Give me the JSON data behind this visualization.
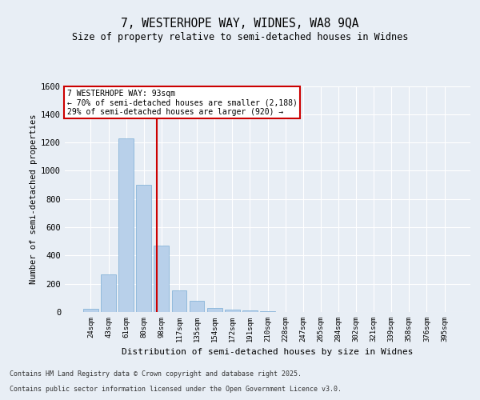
{
  "title": "7, WESTERHOPE WAY, WIDNES, WA8 9QA",
  "subtitle": "Size of property relative to semi-detached houses in Widnes",
  "xlabel": "Distribution of semi-detached houses by size in Widnes",
  "ylabel": "Number of semi-detached properties",
  "categories": [
    "24sqm",
    "43sqm",
    "61sqm",
    "80sqm",
    "98sqm",
    "117sqm",
    "135sqm",
    "154sqm",
    "172sqm",
    "191sqm",
    "210sqm",
    "228sqm",
    "247sqm",
    "265sqm",
    "284sqm",
    "302sqm",
    "321sqm",
    "339sqm",
    "358sqm",
    "376sqm",
    "395sqm"
  ],
  "values": [
    25,
    265,
    1230,
    900,
    470,
    155,
    80,
    28,
    18,
    10,
    5,
    2,
    1,
    0,
    0,
    0,
    0,
    0,
    0,
    0,
    0
  ],
  "bar_color": "#b8d0ea",
  "bar_edgecolor": "#7aadd4",
  "annotation_text_line1": "7 WESTERHOPE WAY: 93sqm",
  "annotation_text_line2": "← 70% of semi-detached houses are smaller (2,188)",
  "annotation_text_line3": "29% of semi-detached houses are larger (920) →",
  "annotation_box_color": "#ffffff",
  "annotation_box_edgecolor": "#cc0000",
  "red_line_color": "#cc0000",
  "background_color": "#e8eef5",
  "plot_background": "#e8eef5",
  "grid_color": "#ffffff",
  "ylim": [
    0,
    1600
  ],
  "yticks": [
    0,
    200,
    400,
    600,
    800,
    1000,
    1200,
    1400,
    1600
  ],
  "footer_line1": "Contains HM Land Registry data © Crown copyright and database right 2025.",
  "footer_line2": "Contains public sector information licensed under the Open Government Licence v3.0."
}
